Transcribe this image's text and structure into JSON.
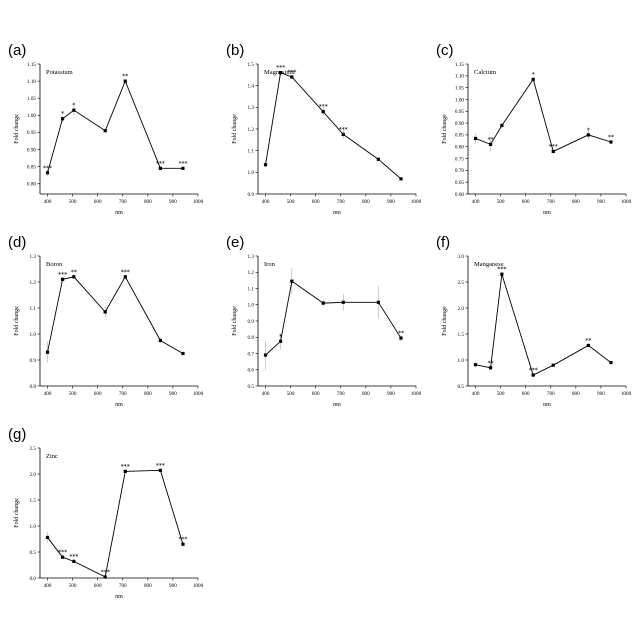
{
  "chart_data": [
    {
      "id": "a",
      "panel_label": "(a)",
      "type": "line",
      "title": "Potassium",
      "xlabel": "nm",
      "ylabel": "Fold change",
      "xlim": [
        370,
        1000
      ],
      "ylim": [
        0.77,
        1.15
      ],
      "xticks": [
        400,
        500,
        600,
        700,
        800,
        900,
        1000
      ],
      "xtick_labels": [
        "400",
        "500",
        "600",
        "700",
        "800",
        "900",
        "1000"
      ],
      "yticks": [
        0.8,
        0.85,
        0.9,
        0.95,
        1.0,
        1.05,
        1.1,
        1.15
      ],
      "ytick_labels": [
        "0.80",
        "0.85",
        "0.90",
        "0.95",
        "1.00",
        "1.05",
        "1.10",
        "1.15"
      ],
      "points": [
        {
          "x": 400,
          "y": 0.832,
          "err": 0.01,
          "sig": "***"
        },
        {
          "x": 460,
          "y": 0.99,
          "err": 0.01,
          "sig": "*"
        },
        {
          "x": 505,
          "y": 1.015,
          "err": 0.015,
          "sig": "*"
        },
        {
          "x": 630,
          "y": 0.955,
          "err": 0.005,
          "sig": ""
        },
        {
          "x": 710,
          "y": 1.1,
          "err": 0.005,
          "sig": "**"
        },
        {
          "x": 850,
          "y": 0.845,
          "err": 0.005,
          "sig": "***"
        },
        {
          "x": 940,
          "y": 0.845,
          "err": 0.005,
          "sig": "***"
        }
      ]
    },
    {
      "id": "b",
      "panel_label": "(b)",
      "type": "line",
      "title": "Magnesium",
      "xlabel": "nm",
      "ylabel": "Fold change",
      "xlim": [
        370,
        1000
      ],
      "ylim": [
        0.9,
        1.5
      ],
      "xticks": [
        400,
        500,
        600,
        700,
        800,
        900,
        1000
      ],
      "xtick_labels": [
        "400",
        "500",
        "600",
        "700",
        "800",
        "900",
        "1000"
      ],
      "yticks": [
        0.9,
        1.0,
        1.1,
        1.2,
        1.3,
        1.4,
        1.5
      ],
      "ytick_labels": [
        "0.9",
        "1.0",
        "1.1",
        "1.2",
        "1.3",
        "1.4",
        "1.5"
      ],
      "points": [
        {
          "x": 400,
          "y": 1.035,
          "err": 0.01,
          "sig": ""
        },
        {
          "x": 460,
          "y": 1.46,
          "err": 0.005,
          "sig": "***"
        },
        {
          "x": 505,
          "y": 1.44,
          "err": 0.005,
          "sig": "***"
        },
        {
          "x": 630,
          "y": 1.28,
          "err": 0.02,
          "sig": "***"
        },
        {
          "x": 710,
          "y": 1.175,
          "err": 0.02,
          "sig": "***"
        },
        {
          "x": 850,
          "y": 1.06,
          "err": 0.005,
          "sig": ""
        },
        {
          "x": 940,
          "y": 0.97,
          "err": 0.005,
          "sig": ""
        }
      ]
    },
    {
      "id": "c",
      "panel_label": "(c)",
      "type": "line",
      "title": "Calcium",
      "xlabel": "nm",
      "ylabel": "Fold change",
      "xlim": [
        370,
        1000
      ],
      "ylim": [
        0.6,
        1.15
      ],
      "xticks": [
        400,
        500,
        600,
        700,
        800,
        900,
        1000
      ],
      "xtick_labels": [
        "400",
        "500",
        "600",
        "700",
        "800",
        "900",
        "1000"
      ],
      "yticks": [
        0.6,
        0.65,
        0.7,
        0.75,
        0.8,
        0.85,
        0.9,
        0.95,
        1.0,
        1.05,
        1.1,
        1.15
      ],
      "ytick_labels": [
        "0.60",
        "0.65",
        "0.70",
        "0.75",
        "0.80",
        "0.85",
        "0.90",
        "0.95",
        "1.00",
        "1.05",
        "1.10",
        "1.15"
      ],
      "points": [
        {
          "x": 400,
          "y": 0.835,
          "err": 0.02,
          "sig": ""
        },
        {
          "x": 460,
          "y": 0.81,
          "err": 0.03,
          "sig": "**"
        },
        {
          "x": 505,
          "y": 0.89,
          "err": 0.01,
          "sig": ""
        },
        {
          "x": 630,
          "y": 1.085,
          "err": 0.01,
          "sig": "*"
        },
        {
          "x": 710,
          "y": 0.78,
          "err": 0.01,
          "sig": "***"
        },
        {
          "x": 850,
          "y": 0.85,
          "err": 0.02,
          "sig": "*"
        },
        {
          "x": 940,
          "y": 0.82,
          "err": 0.005,
          "sig": "**"
        }
      ]
    },
    {
      "id": "d",
      "panel_label": "(d)",
      "type": "line",
      "title": "Boron",
      "xlabel": "nm",
      "ylabel": "Fold change",
      "xlim": [
        370,
        1000
      ],
      "ylim": [
        0.8,
        1.3
      ],
      "xticks": [
        400,
        500,
        600,
        700,
        800,
        900,
        1000
      ],
      "xtick_labels": [
        "400",
        "500",
        "600",
        "700",
        "800",
        "900",
        "1000"
      ],
      "yticks": [
        0.8,
        0.9,
        1.0,
        1.1,
        1.2,
        1.3
      ],
      "ytick_labels": [
        "0.8",
        "0.9",
        "1.0",
        "1.1",
        "1.2",
        "1.3"
      ],
      "points": [
        {
          "x": 400,
          "y": 0.93,
          "err": 0.04,
          "sig": ""
        },
        {
          "x": 460,
          "y": 1.21,
          "err": 0.01,
          "sig": "***"
        },
        {
          "x": 505,
          "y": 1.22,
          "err": 0.01,
          "sig": "**"
        },
        {
          "x": 630,
          "y": 1.085,
          "err": 0.02,
          "sig": ""
        },
        {
          "x": 710,
          "y": 1.22,
          "err": 0.01,
          "sig": "***"
        },
        {
          "x": 850,
          "y": 0.975,
          "err": 0.01,
          "sig": ""
        },
        {
          "x": 940,
          "y": 0.925,
          "err": 0.005,
          "sig": ""
        }
      ]
    },
    {
      "id": "e",
      "panel_label": "(e)",
      "type": "line",
      "title": "Iron",
      "xlabel": "nm",
      "ylabel": "Fold change",
      "xlim": [
        370,
        1000
      ],
      "ylim": [
        0.5,
        1.3
      ],
      "xticks": [
        400,
        500,
        600,
        700,
        800,
        900,
        1000
      ],
      "xtick_labels": [
        "400",
        "500",
        "600",
        "700",
        "800",
        "900",
        "1000"
      ],
      "yticks": [
        0.5,
        0.6,
        0.7,
        0.8,
        0.9,
        1.0,
        1.1,
        1.2,
        1.3
      ],
      "ytick_labels": [
        "0.5",
        "0.6",
        "0.7",
        "0.8",
        "0.9",
        "1.0",
        "1.1",
        "1.2",
        "1.3"
      ],
      "points": [
        {
          "x": 400,
          "y": 0.69,
          "err": 0.09,
          "sig": ""
        },
        {
          "x": 460,
          "y": 0.775,
          "err": 0.05,
          "sig": "*"
        },
        {
          "x": 505,
          "y": 1.145,
          "err": 0.08,
          "sig": ""
        },
        {
          "x": 630,
          "y": 1.01,
          "err": 0.02,
          "sig": ""
        },
        {
          "x": 710,
          "y": 1.015,
          "err": 0.05,
          "sig": ""
        },
        {
          "x": 850,
          "y": 1.015,
          "err": 0.1,
          "sig": ""
        },
        {
          "x": 940,
          "y": 0.795,
          "err": 0.02,
          "sig": "**"
        }
      ]
    },
    {
      "id": "f",
      "panel_label": "(f)",
      "type": "line",
      "title": "Manganese",
      "xlabel": "nm",
      "ylabel": "Fold change",
      "xlim": [
        370,
        1000
      ],
      "ylim": [
        0.5,
        3.0
      ],
      "xticks": [
        400,
        500,
        600,
        700,
        800,
        900,
        1000
      ],
      "xtick_labels": [
        "400",
        "500",
        "600",
        "700",
        "800",
        "900",
        "1000"
      ],
      "yticks": [
        0.5,
        1.0,
        1.5,
        2.0,
        2.5,
        3.0
      ],
      "ytick_labels": [
        "0.5",
        "1.0",
        "1.5",
        "2.0",
        "2.5",
        "3.0"
      ],
      "points": [
        {
          "x": 400,
          "y": 0.91,
          "err": 0.03,
          "sig": ""
        },
        {
          "x": 460,
          "y": 0.85,
          "err": 0.03,
          "sig": "**"
        },
        {
          "x": 505,
          "y": 2.65,
          "err": 0.04,
          "sig": "***"
        },
        {
          "x": 630,
          "y": 0.71,
          "err": 0.03,
          "sig": "***"
        },
        {
          "x": 710,
          "y": 0.9,
          "err": 0.02,
          "sig": ""
        },
        {
          "x": 850,
          "y": 1.28,
          "err": 0.03,
          "sig": "**"
        },
        {
          "x": 940,
          "y": 0.95,
          "err": 0.02,
          "sig": ""
        }
      ]
    },
    {
      "id": "g",
      "panel_label": "(g)",
      "type": "line",
      "title": "Zinc",
      "xlabel": "nm",
      "ylabel": "Fold change",
      "xlim": [
        370,
        1000
      ],
      "ylim": [
        0.0,
        2.5
      ],
      "xticks": [
        400,
        500,
        600,
        700,
        800,
        900,
        1000
      ],
      "xtick_labels": [
        "400",
        "500",
        "600",
        "700",
        "800",
        "900",
        "1000"
      ],
      "yticks": [
        0.0,
        0.5,
        1.0,
        1.5,
        2.0,
        2.5
      ],
      "ytick_labels": [
        "0.0",
        "0.5",
        "1.0",
        "1.5",
        "2.0",
        "2.5"
      ],
      "points": [
        {
          "x": 400,
          "y": 0.78,
          "err": 0.1,
          "sig": ""
        },
        {
          "x": 460,
          "y": 0.4,
          "err": 0.03,
          "sig": "***"
        },
        {
          "x": 505,
          "y": 0.32,
          "err": 0.02,
          "sig": "***"
        },
        {
          "x": 630,
          "y": 0.02,
          "err": 0.01,
          "sig": "***"
        },
        {
          "x": 710,
          "y": 2.05,
          "err": 0.02,
          "sig": "***"
        },
        {
          "x": 850,
          "y": 2.07,
          "err": 0.02,
          "sig": "***"
        },
        {
          "x": 940,
          "y": 0.65,
          "err": 0.03,
          "sig": "***"
        }
      ]
    }
  ]
}
